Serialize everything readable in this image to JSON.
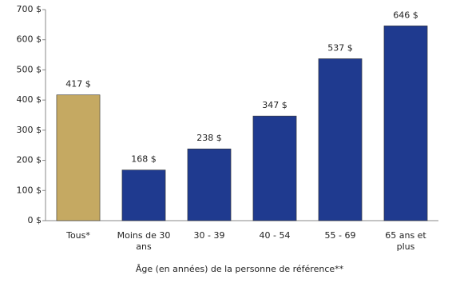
{
  "chart_data": {
    "type": "bar",
    "x_label": "Âge (en années) de la personne de référence**",
    "categories": [
      "Tous*",
      "Moins de 30 ans",
      "30 - 39",
      "40 - 54",
      "55 - 69",
      "65 ans et plus"
    ],
    "values": [
      417,
      168,
      238,
      347,
      537,
      646
    ],
    "value_labels": [
      "417 $",
      "168 $",
      "238 $",
      "347 $",
      "537 $",
      "646 $"
    ],
    "colors": [
      "#c5a962",
      "#1f3a8f",
      "#1f3a8f",
      "#1f3a8f",
      "#1f3a8f",
      "#1f3a8f"
    ],
    "ylim": [
      0,
      700
    ],
    "yticks": [
      {
        "value": 0,
        "label": "0 $"
      },
      {
        "value": 100,
        "label": "100 $"
      },
      {
        "value": 200,
        "label": "200 $"
      },
      {
        "value": 300,
        "label": "300 $"
      },
      {
        "value": 400,
        "label": "400 $"
      },
      {
        "value": 500,
        "label": "500 $"
      },
      {
        "value": 600,
        "label": "600 $"
      },
      {
        "value": 700,
        "label": "700 $"
      }
    ],
    "grid": false
  }
}
